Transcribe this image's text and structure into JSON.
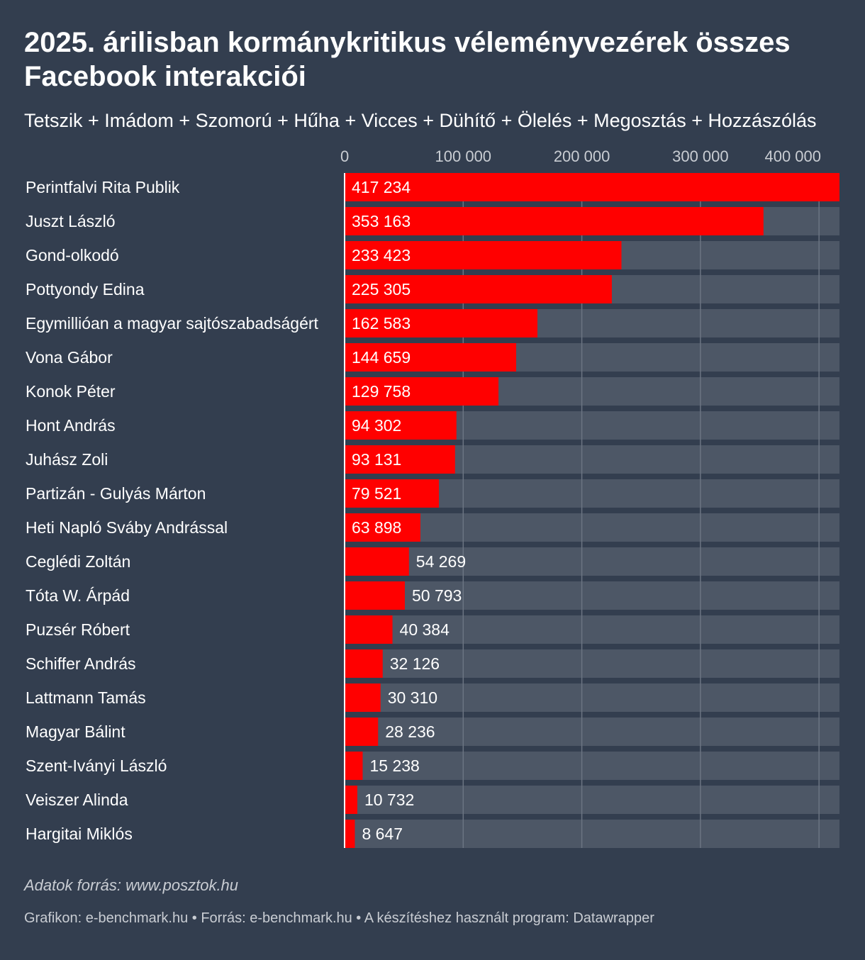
{
  "title": "2025. árilisban kormánykritikus véleményvezérek összes Facebook interakciói",
  "subtitle": "Tetszik + Imádom + Szomorú + Hűha + Vicces + Dühítő + Ölelés + Megosztás + Hozzászólás",
  "source_note": "Adatok forrás: www.posztok.hu",
  "footer": "Grafikon: e-benchmark.hu • Forrás: e-benchmark.hu • A készítéshez használt program: Datawrapper",
  "colors": {
    "background": "#333e4f",
    "bar": "#ff0000",
    "track": "#4d5766",
    "grid": "#6b7482",
    "text": "#ffffff",
    "muted": "#c9cdd3"
  },
  "chart_data": {
    "type": "bar",
    "orientation": "horizontal",
    "xlim": [
      0,
      417234
    ],
    "ticks": [
      0,
      100000,
      200000,
      300000,
      400000
    ],
    "tick_labels": [
      "0",
      "100 000",
      "200 000",
      "300 000",
      "400 000"
    ],
    "grid": true,
    "categories": [
      "Perintfalvi Rita Publik",
      "Juszt László",
      "Gond-olkodó",
      "Pottyondy Edina",
      "Egymillióan a magyar sajtószabadságért",
      "Vona Gábor",
      "Konok Péter",
      "Hont András",
      "Juhász Zoli",
      "Partizán - Gulyás Márton",
      "Heti Napló Sváby Andrással",
      "Ceglédi Zoltán",
      "Tóta W. Árpád",
      "Puzsér Róbert",
      "Schiffer András",
      "Lattmann Tamás",
      "Magyar Bálint",
      "Szent-Iványi László",
      "Veiszer Alinda",
      "Hargitai Miklós"
    ],
    "values": [
      417234,
      353163,
      233423,
      225305,
      162583,
      144659,
      129758,
      94302,
      93131,
      79521,
      63898,
      54269,
      50793,
      40384,
      32126,
      30310,
      28236,
      15238,
      10732,
      8647
    ],
    "value_labels": [
      "417 234",
      "353 163",
      "233 423",
      "225 305",
      "162 583",
      "144 659",
      "129 758",
      "94 302",
      "93 131",
      "79 521",
      "63 898",
      "54 269",
      "50 793",
      "40 384",
      "32 126",
      "30 310",
      "28 236",
      "15 238",
      "10 732",
      "8 647"
    ]
  }
}
